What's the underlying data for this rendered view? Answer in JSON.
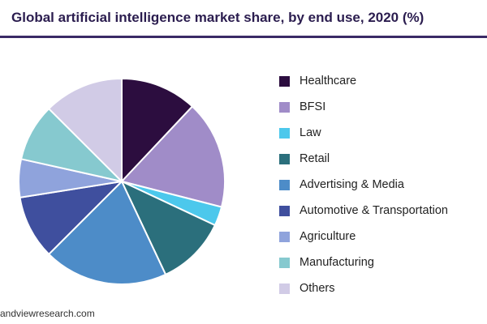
{
  "chart_data": {
    "type": "pie",
    "title": "Global artificial intelligence market share, by end use, 2020 (%)",
    "categories": [
      "Healthcare",
      "BFSI",
      "Law",
      "Retail",
      "Advertising & Media",
      "Automotive & Transportation",
      "Agriculture",
      "Manufacturing",
      "Others"
    ],
    "values": [
      12.0,
      17.0,
      3.0,
      11.0,
      19.5,
      10.0,
      6.0,
      9.0,
      12.5
    ],
    "colors": [
      "#2c0d3f",
      "#a08cc8",
      "#4cc8ec",
      "#2b6f7c",
      "#4d8cc8",
      "#3f4f9e",
      "#8fa3dc",
      "#86c9cf",
      "#d1cbe6"
    ],
    "legend_position": "right",
    "start_angle_deg": 0,
    "direction": "clockwise"
  },
  "source": "andviewresearch.com",
  "icons": {
    "legend_swatch": "square"
  }
}
